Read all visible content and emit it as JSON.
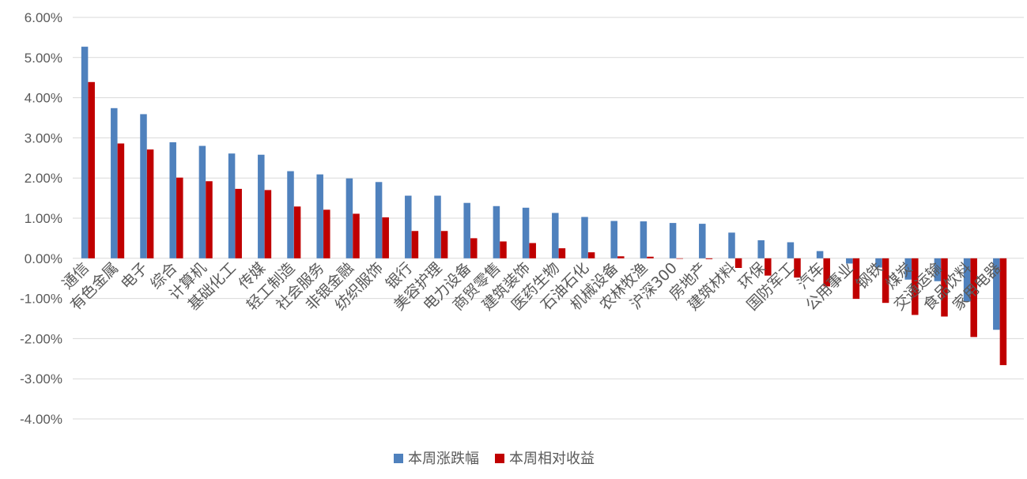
{
  "chart_data": {
    "type": "bar",
    "title": "",
    "xlabel": "",
    "ylabel": "",
    "ylim": [
      -4,
      6
    ],
    "y_ticks": [
      "6.00%",
      "5.00%",
      "4.00%",
      "3.00%",
      "2.00%",
      "1.00%",
      "0.00%",
      "-1.00%",
      "-2.00%",
      "-3.00%",
      "-4.00%"
    ],
    "y_tick_values": [
      6,
      5,
      4,
      3,
      2,
      1,
      0,
      -1,
      -2,
      -3,
      -4
    ],
    "grid": true,
    "legend_position": "bottom",
    "categories": [
      "通信",
      "有色金属",
      "电子",
      "综合",
      "计算机",
      "基础化工",
      "传媒",
      "轻工制造",
      "社会服务",
      "非银金融",
      "纺织服饰",
      "银行",
      "美容护理",
      "电力设备",
      "商贸零售",
      "建筑装饰",
      "医药生物",
      "石油石化",
      "机械设备",
      "农林牧渔",
      "沪深300",
      "房地产",
      "建筑材料",
      "环保",
      "国防军工",
      "汽车",
      "公用事业",
      "钢铁",
      "煤炭",
      "交通运输",
      "食品饮料",
      "家用电器"
    ],
    "series": [
      {
        "name": "本周涨跌幅",
        "color": "#4F81BD",
        "values": [
          5.27,
          3.74,
          3.59,
          2.89,
          2.8,
          2.61,
          2.58,
          2.17,
          2.09,
          1.99,
          1.9,
          1.56,
          1.56,
          1.38,
          1.3,
          1.26,
          1.13,
          1.03,
          0.93,
          0.92,
          0.88,
          0.86,
          0.64,
          0.45,
          0.4,
          0.18,
          -0.13,
          -0.23,
          -0.53,
          -0.57,
          -1.08,
          -1.78
        ]
      },
      {
        "name": "本周相对收益",
        "color": "#C00000",
        "values": [
          4.39,
          2.86,
          2.71,
          2.01,
          1.92,
          1.73,
          1.7,
          1.29,
          1.21,
          1.11,
          1.02,
          0.68,
          0.68,
          0.5,
          0.42,
          0.38,
          0.25,
          0.15,
          0.05,
          0.04,
          0.0,
          -0.02,
          -0.24,
          -0.43,
          -0.48,
          -0.7,
          -1.01,
          -1.11,
          -1.41,
          -1.45,
          -1.96,
          -2.66
        ]
      }
    ]
  }
}
